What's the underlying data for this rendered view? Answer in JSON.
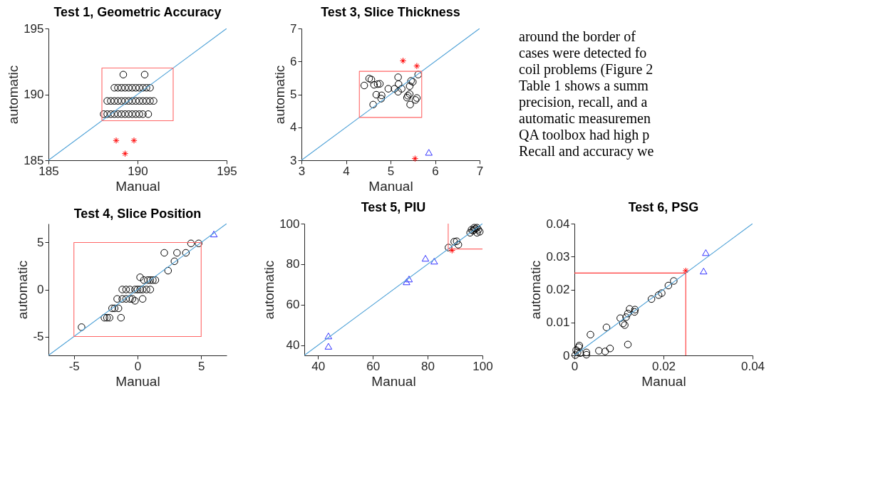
{
  "chart_data": [
    {
      "type": "scatter",
      "title": "Test 1, Geometric Accuracy",
      "xlabel": "Manual",
      "ylabel": "automatic",
      "xlim": [
        185,
        195
      ],
      "ylim": [
        185,
        195
      ],
      "xticks": [
        185,
        190,
        195
      ],
      "yticks": [
        185,
        190,
        195
      ],
      "series": [
        {
          "type": "scatter",
          "marker": "circle",
          "color": "#000000",
          "x": [
            189.2,
            190.4,
            188.7,
            188.9,
            189.1,
            189.3,
            189.5,
            189.7,
            189.9,
            190.1,
            190.3,
            190.5,
            190.7,
            188.3,
            188.5,
            188.7,
            188.9,
            189.1,
            189.3,
            189.5,
            189.7,
            189.9,
            190.1,
            190.3,
            190.5,
            190.7,
            190.9,
            188.1,
            188.3,
            188.5,
            188.7,
            188.9,
            189.1,
            189.3,
            189.5,
            189.7,
            189.9,
            190.1,
            190.3,
            190.6
          ],
          "values": [
            191.5,
            191.5,
            190.5,
            190.5,
            190.5,
            190.5,
            190.5,
            190.5,
            190.5,
            190.5,
            190.5,
            190.5,
            190.5,
            189.5,
            189.5,
            189.5,
            189.5,
            189.5,
            189.5,
            189.5,
            189.5,
            189.5,
            189.5,
            189.5,
            189.5,
            189.5,
            189.5,
            188.5,
            188.5,
            188.5,
            188.5,
            188.5,
            188.5,
            188.5,
            188.5,
            188.5,
            188.5,
            188.5,
            188.5,
            188.5
          ]
        },
        {
          "type": "scatter",
          "marker": "cross",
          "color": "#ff0000",
          "x": [
            188.8,
            189.8,
            189.3
          ],
          "values": [
            186.5,
            186.5,
            185.5
          ]
        },
        {
          "type": "line",
          "color": "#4a9fd6",
          "x": [
            185,
            195
          ],
          "values": [
            185,
            195
          ]
        },
        {
          "type": "line",
          "color": "#ff6666",
          "x": [
            188,
            192,
            192
          ],
          "values": [
            188,
            188,
            192
          ]
        },
        {
          "type": "line",
          "color": "#ff6666",
          "x": [
            192,
            188,
            188
          ],
          "values": [
            192,
            192,
            188
          ]
        }
      ]
    },
    {
      "type": "scatter",
      "title": "Test 3, Slice Thickness",
      "xlabel": "Manual",
      "ylabel": "automatic",
      "xlim": [
        3,
        7
      ],
      "ylim": [
        3,
        7
      ],
      "xticks": [
        3,
        4,
        5,
        6,
        7
      ],
      "yticks": [
        3,
        4,
        5,
        6,
        7
      ],
      "series": [
        {
          "type": "scatter",
          "marker": "circle",
          "color": "#000000",
          "x": [
            4.41,
            4.52,
            4.57,
            4.63,
            4.71,
            4.76,
            4.68,
            4.8,
            4.79,
            4.61,
            4.95,
            5.09,
            5.17,
            5.18,
            5.17,
            5.25,
            5.43,
            5.46,
            5.5,
            5.62,
            5.39,
            5.37,
            5.43,
            5.56,
            5.59,
            5.44
          ],
          "values": [
            5.27,
            5.48,
            5.45,
            5.29,
            5.31,
            5.32,
            4.99,
            4.97,
            4.87,
            4.69,
            5.17,
            5.17,
            5.52,
            5.31,
            5.08,
            5.17,
            5.25,
            5.41,
            5.38,
            5.6,
            4.96,
            4.9,
            5.01,
            4.83,
            4.89,
            4.69
          ]
        },
        {
          "type": "scatter",
          "marker": "cross",
          "color": "#ff0000",
          "x": [
            5.28,
            5.59,
            5.55
          ],
          "values": [
            6.02,
            5.86,
            3.05
          ]
        },
        {
          "type": "scatter",
          "marker": "triangle",
          "color": "#3333ff",
          "x": [
            5.86
          ],
          "values": [
            3.24
          ]
        },
        {
          "type": "line",
          "color": "#4a9fd6",
          "x": [
            3,
            7
          ],
          "values": [
            3,
            7
          ]
        },
        {
          "type": "line",
          "color": "#ff6666",
          "x": [
            4.3,
            5.7,
            5.7
          ],
          "values": [
            4.3,
            4.3,
            5.7
          ]
        },
        {
          "type": "line",
          "color": "#ff6666",
          "x": [
            5.7,
            4.3,
            4.3
          ],
          "values": [
            5.7,
            5.7,
            4.3
          ]
        }
      ]
    },
    {
      "type": "other",
      "annotations": [
        "around the border of",
        "cases were detected fo",
        "coil problems (Figure 2",
        "Table 1 shows a summ",
        "precision, recall, and a",
        "automatic measuremen",
        "QA toolbox had high p",
        "Recall and accuracy we"
      ]
    },
    {
      "type": "scatter",
      "title": "Test 4, Slice Position",
      "xlabel": "Manual",
      "ylabel": "automatic",
      "xlim": [
        -7,
        7
      ],
      "ylim": [
        -7,
        7
      ],
      "xticks": [
        -5,
        0,
        5
      ],
      "yticks": [
        -5,
        0,
        5
      ],
      "series": [
        {
          "type": "scatter",
          "marker": "circle",
          "color": "#000000",
          "x": [
            -4.4,
            4.2,
            4.8,
            2.1,
            3.1,
            3.8,
            2.9,
            2.4,
            0.5,
            0.8,
            1.0,
            1.2,
            1.4,
            0.2,
            -1.2,
            -0.9,
            -0.6,
            -0.2,
            0,
            0.2,
            0.4,
            0.7,
            1.0,
            -1.6,
            -1.2,
            -0.9,
            -0.6,
            -0.4,
            0.4,
            -0.2,
            -2.0,
            -1.8,
            -1.5,
            -2.6,
            -2.4,
            -2.2,
            -1.3
          ],
          "values": [
            -4,
            4.9,
            4.9,
            3.9,
            3.9,
            3.9,
            3,
            2,
            1,
            1,
            1,
            1,
            1,
            1.3,
            0,
            0,
            0,
            0,
            0,
            0,
            0,
            0,
            0,
            -1,
            -1,
            -1,
            -1,
            -1,
            -1,
            -1.2,
            -2,
            -2,
            -2,
            -3,
            -3,
            -3,
            -3
          ]
        },
        {
          "type": "scatter",
          "marker": "triangle",
          "color": "#3333ff",
          "x": [
            6
          ],
          "values": [
            5.9
          ]
        },
        {
          "type": "line",
          "color": "#4a9fd6",
          "x": [
            -7,
            7
          ],
          "values": [
            -7,
            7
          ]
        },
        {
          "type": "line",
          "color": "#ff6666",
          "x": [
            -5,
            5,
            5
          ],
          "values": [
            -5,
            -5,
            5
          ]
        },
        {
          "type": "line",
          "color": "#ff6666",
          "x": [
            5,
            -5,
            -5
          ],
          "values": [
            5,
            5,
            -5
          ]
        }
      ]
    },
    {
      "type": "scatter",
      "title": "Test 5, PIU",
      "xlabel": "Manual",
      "ylabel": "automatic",
      "xlim": [
        35,
        100
      ],
      "ylim": [
        35,
        100
      ],
      "xticks": [
        40,
        60,
        80,
        100
      ],
      "yticks": [
        40,
        60,
        80,
        100
      ],
      "series": [
        {
          "type": "scatter",
          "marker": "circle",
          "color": "#000000",
          "x": [
            87.6,
            89.7,
            90.6,
            91.2,
            95.5,
            96.5,
            97,
            97.5,
            98,
            98.5,
            99,
            98,
            97,
            96
          ],
          "values": [
            88.2,
            91.1,
            91.3,
            89.6,
            95.5,
            96.5,
            98,
            97.5,
            98,
            97,
            96,
            95.5,
            97,
            97
          ]
        },
        {
          "type": "scatter",
          "marker": "cross",
          "color": "#ff0000",
          "x": [
            88.9
          ],
          "values": [
            86.8
          ]
        },
        {
          "type": "scatter",
          "marker": "triangle",
          "color": "#3333ff",
          "x": [
            43.8,
            43.8,
            72.3,
            73.2,
            79.2,
            82.4
          ],
          "values": [
            44.6,
            39.5,
            71.3,
            72.7,
            82.9,
            81.5
          ]
        },
        {
          "type": "line",
          "color": "#4a9fd6",
          "x": [
            35,
            100
          ],
          "values": [
            35,
            100
          ]
        },
        {
          "type": "line",
          "color": "#ff6666",
          "x": [
            87.5,
            87.5,
            100
          ],
          "values": [
            100,
            87.5,
            87.5
          ]
        }
      ]
    },
    {
      "type": "scatter",
      "title": "Test 6, PSG",
      "xlabel": "Manual",
      "ylabel": "automatic",
      "xlim": [
        0,
        0.04
      ],
      "ylim": [
        0,
        0.04
      ],
      "xticks": [
        0,
        0.02,
        0.04
      ],
      "yticks": [
        0,
        0.01,
        0.02,
        0.03,
        0.04
      ],
      "series": [
        {
          "type": "scatter",
          "marker": "circle",
          "color": "#000000",
          "x": [
            0.0223,
            0.0211,
            0.0196,
            0.0189,
            0.0173,
            0.0136,
            0.0135,
            0.0124,
            0.012,
            0.0116,
            0.0103,
            0.0109,
            0.0113,
            0.0072,
            0.0036,
            0.012,
            0.008,
            0.0069,
            0.0055,
            0.0027,
            0.0027,
            0.0011,
            0.001,
            0.0004,
            0.0007,
            0.0002,
            0.0013
          ],
          "values": [
            0.0226,
            0.0212,
            0.0189,
            0.0183,
            0.0171,
            0.0139,
            0.0132,
            0.0141,
            0.0127,
            0.0116,
            0.0113,
            0.0097,
            0.0092,
            0.0085,
            0.0063,
            0.0033,
            0.0021,
            0.0012,
            0.0014,
            0.0009,
            0.0002,
            0.003,
            0.0025,
            0.0016,
            0.0009,
            0.0001,
            0.0007
          ]
        },
        {
          "type": "scatter",
          "marker": "cross",
          "color": "#ff0000",
          "x": [
            0.025
          ],
          "values": [
            0.0257
          ]
        },
        {
          "type": "scatter",
          "marker": "triangle",
          "color": "#3333ff",
          "x": [
            0.0295,
            0.029
          ],
          "values": [
            0.0312,
            0.0256
          ]
        },
        {
          "type": "line",
          "color": "#4a9fd6",
          "x": [
            0,
            0.04
          ],
          "values": [
            0,
            0.04
          ]
        },
        {
          "type": "line",
          "color": "#ff3333",
          "x": [
            0,
            0.025,
            0.025
          ],
          "values": [
            0.025,
            0.025,
            0
          ]
        }
      ]
    }
  ]
}
